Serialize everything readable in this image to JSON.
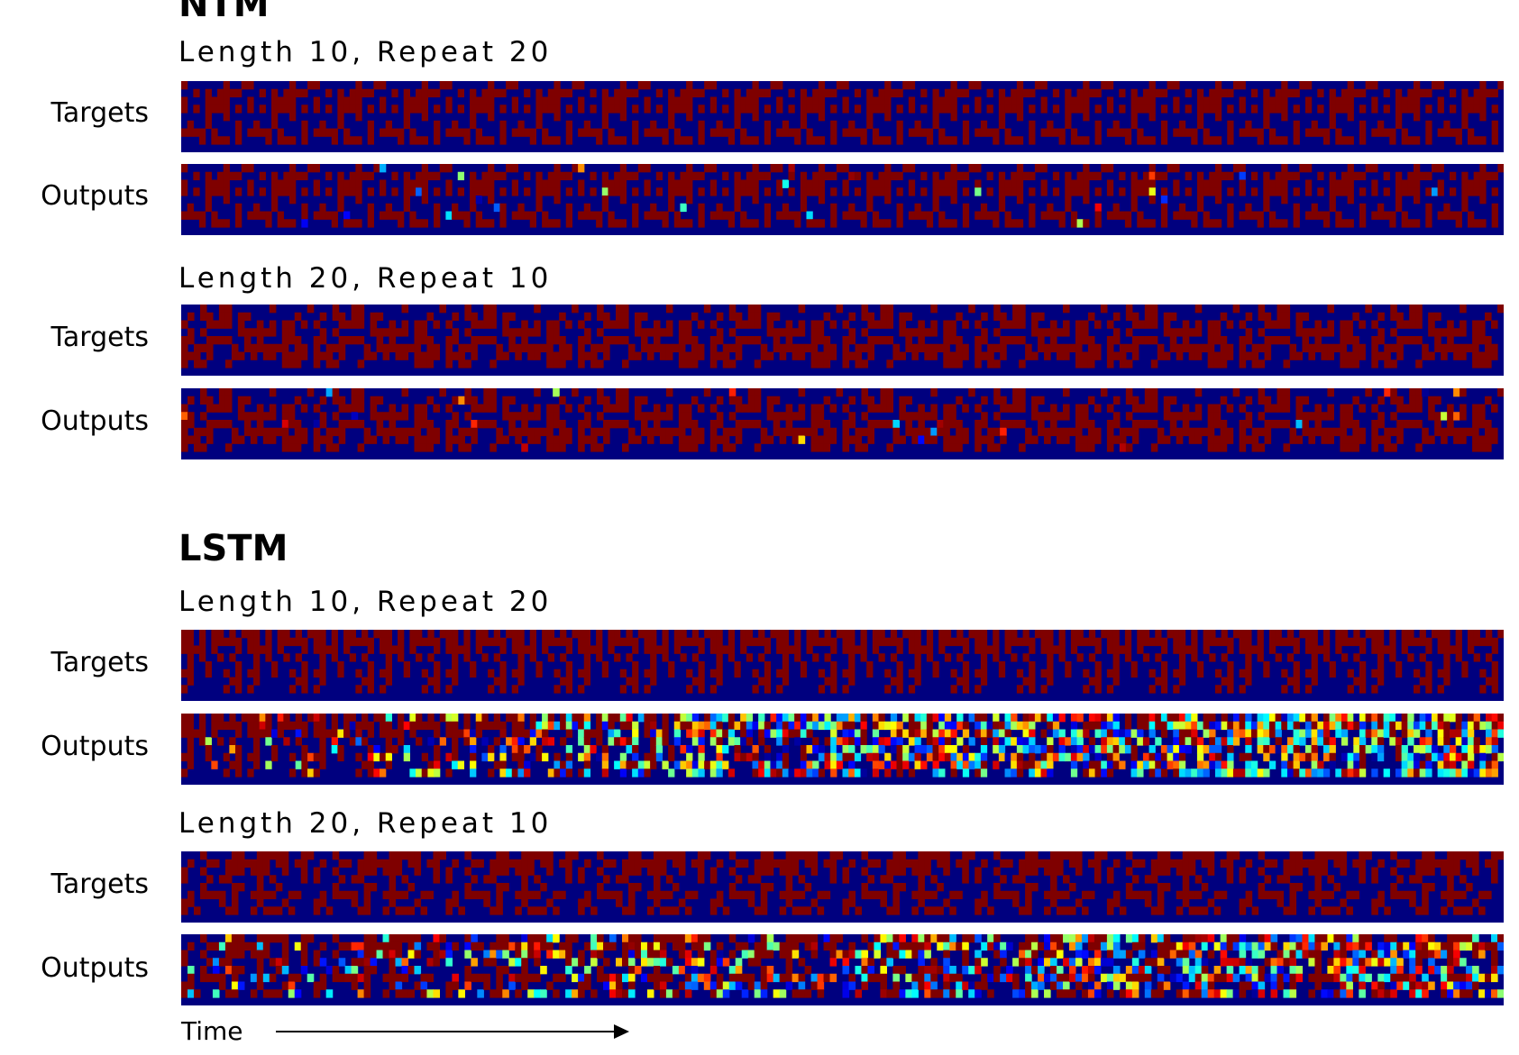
{
  "colors": {
    "low": "#00007f",
    "high": "#7f0000",
    "background": "#ffffff"
  },
  "colormap": "jet",
  "sections": [
    {
      "title": "NTM",
      "panels": [
        {
          "subtitle": "Length 10, Repeat 20",
          "rows": [
            "Targets",
            "Outputs"
          ]
        },
        {
          "subtitle": "Length 20, Repeat 10",
          "rows": [
            "Targets",
            "Outputs"
          ]
        }
      ]
    },
    {
      "title": "LSTM",
      "panels": [
        {
          "subtitle": "Length 10, Repeat 20",
          "rows": [
            "Targets",
            "Outputs"
          ]
        },
        {
          "subtitle": "Length 20, Repeat 10",
          "rows": [
            "Targets",
            "Outputs"
          ]
        }
      ]
    }
  ],
  "time_axis": {
    "label": "Time"
  }
}
